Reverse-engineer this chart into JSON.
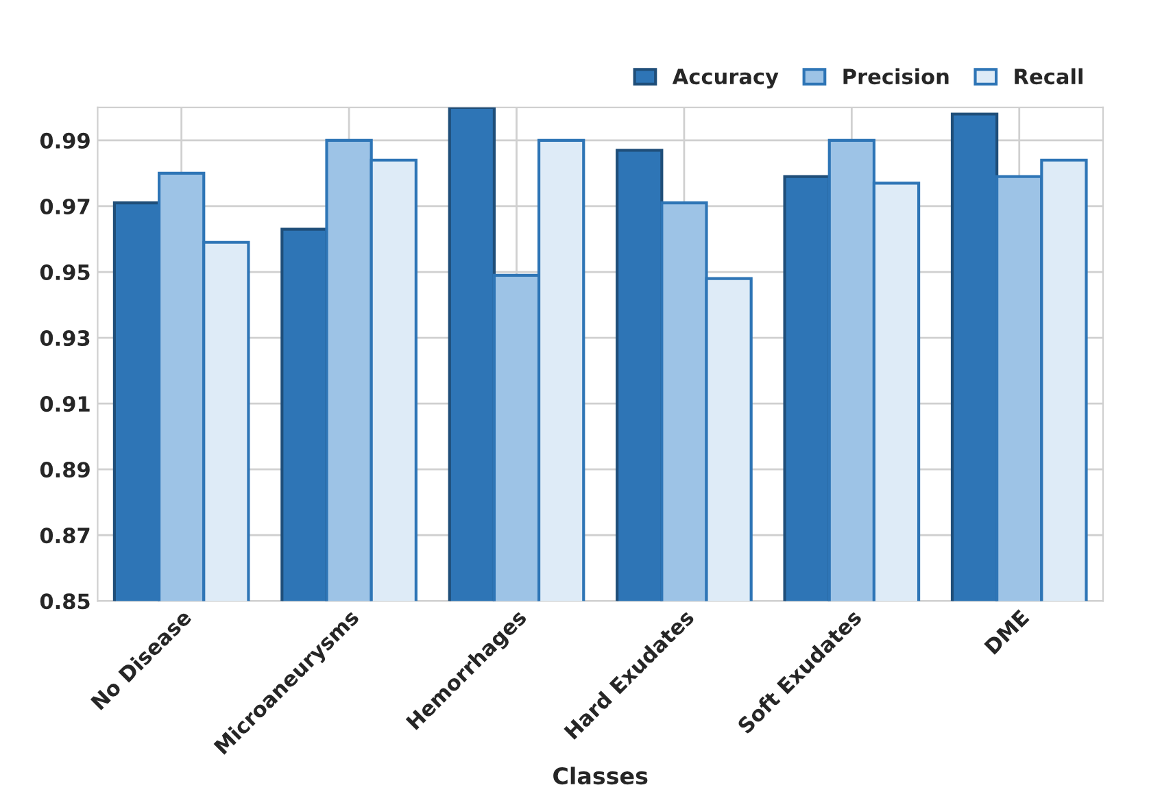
{
  "chart_data": {
    "type": "bar",
    "xlabel": "Classes",
    "categories": [
      "No Disease",
      "Microaneurysms",
      "Hemorrhages",
      "Hard Exudates",
      "Soft Exudates",
      "DME"
    ],
    "series": [
      {
        "name": "Accuracy",
        "color": "#2e75b6",
        "values": [
          0.971,
          0.963,
          1.0,
          0.987,
          0.979,
          0.998
        ]
      },
      {
        "name": "Precision",
        "color": "#9dc3e6",
        "values": [
          0.98,
          0.99,
          0.949,
          0.971,
          0.99,
          0.979
        ]
      },
      {
        "name": "Recall",
        "color": "#deebf7",
        "values": [
          0.959,
          0.984,
          0.99,
          0.948,
          0.977,
          0.984
        ]
      }
    ],
    "ylim": [
      0.85,
      1.0
    ],
    "yticks": [
      0.85,
      0.87,
      0.89,
      0.91,
      0.93,
      0.95,
      0.97,
      0.99
    ],
    "grid": true,
    "legend": "top right"
  }
}
